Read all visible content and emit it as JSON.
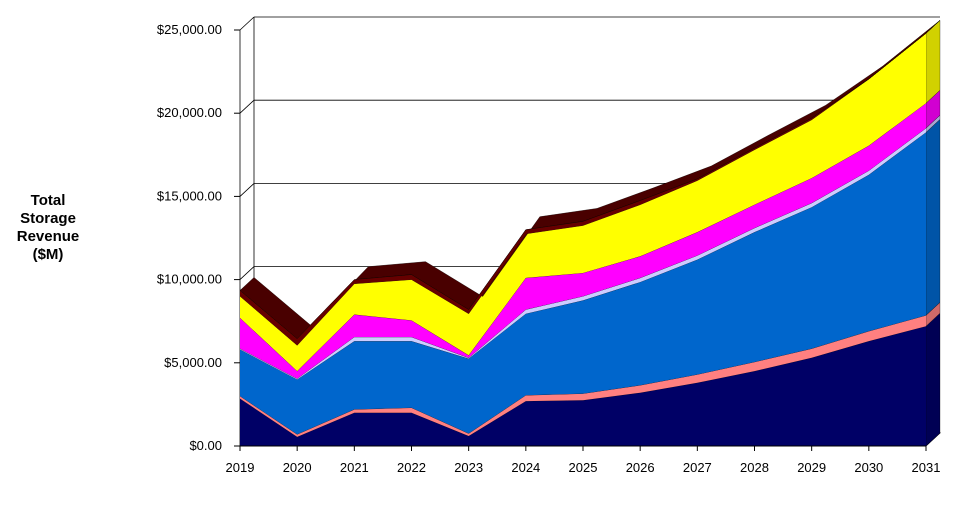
{
  "chart_data": {
    "type": "area",
    "stacked": true,
    "three_d": true,
    "title": "",
    "xlabel": "",
    "ylabel_lines": [
      "Total",
      "Storage",
      "Revenue",
      "($M)"
    ],
    "ylim": [
      0,
      25000
    ],
    "ytick_labels": [
      "$0.00",
      "$5,000.00",
      "$10,000.00",
      "$15,000.00",
      "$20,000.00",
      "$25,000.00"
    ],
    "grid": true,
    "legend": "none",
    "x": [
      "2019",
      "2020",
      "2021",
      "2022",
      "2023",
      "2024",
      "2025",
      "2026",
      "2027",
      "2028",
      "2029",
      "2030",
      "2031"
    ],
    "series": [
      {
        "color": "#000066",
        "values": [
          2850,
          550,
          2000,
          2000,
          600,
          2700,
          2750,
          3200,
          3800,
          4500,
          5300,
          6300,
          7200
        ]
      },
      {
        "color": "#ff8080",
        "values": [
          150,
          150,
          200,
          300,
          150,
          350,
          400,
          450,
          500,
          550,
          550,
          600,
          650
        ]
      },
      {
        "color": "#0066cc",
        "values": [
          2800,
          3300,
          4100,
          4000,
          4500,
          4900,
          5600,
          6200,
          6900,
          7800,
          8500,
          9400,
          11000
        ]
      },
      {
        "color": "#ccccff",
        "values": [
          50,
          50,
          250,
          250,
          50,
          250,
          250,
          250,
          250,
          250,
          250,
          250,
          250
        ]
      },
      {
        "color": "#ff00ff",
        "values": [
          1850,
          450,
          1350,
          1000,
          150,
          1900,
          1400,
          1300,
          1400,
          1400,
          1500,
          1500,
          1500
        ]
      },
      {
        "color": "#ffff00",
        "values": [
          1300,
          1550,
          1850,
          2450,
          2500,
          2650,
          2850,
          3100,
          3100,
          3300,
          3500,
          4000,
          4200
        ]
      },
      {
        "color": "#660000",
        "values": [
          350,
          400,
          250,
          300,
          250,
          250,
          250,
          250,
          100,
          100,
          100,
          0,
          0
        ]
      }
    ]
  }
}
